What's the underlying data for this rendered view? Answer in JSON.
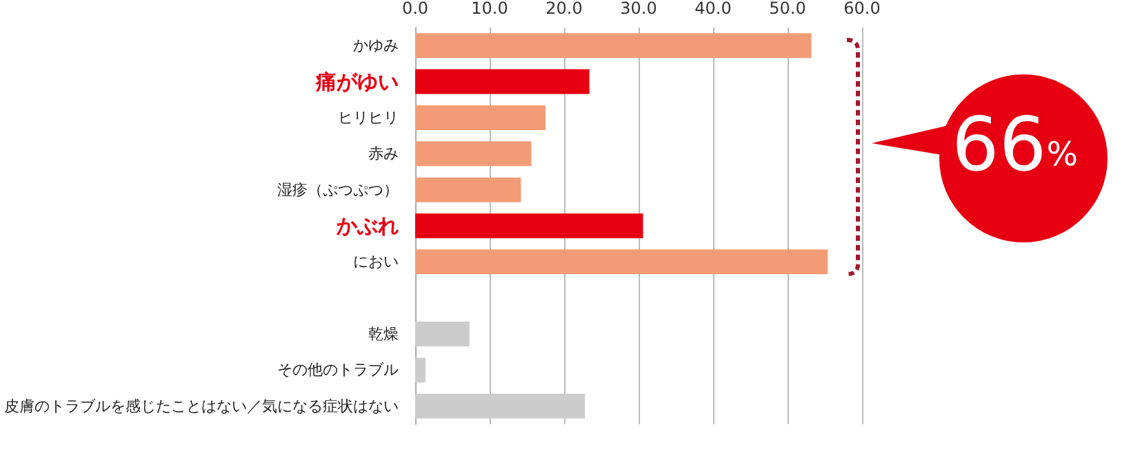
{
  "chart_data": {
    "type": "bar",
    "orientation": "horizontal",
    "categories": [
      "かゆみ",
      "痛がゆい",
      "ヒリヒリ",
      "赤み",
      "湿疹（ぷつぷつ）",
      "かぶれ",
      "におい",
      null,
      "乾燥",
      "その他のトラブル",
      "皮膚のトラブルを感じたことはない／気になる症状はない"
    ],
    "values": [
      53.2,
      23.4,
      17.5,
      15.6,
      14.2,
      30.6,
      55.4,
      null,
      7.3,
      1.4,
      22.8
    ],
    "colors": [
      "#f29c77",
      "#e60012",
      "#f29c77",
      "#f29c77",
      "#f29c77",
      "#e60012",
      "#f29c77",
      "#cccccc",
      "#cccccc",
      "#cccccc",
      "#cccccc"
    ],
    "xlim": [
      0,
      60
    ],
    "xticks": [
      {
        "value": 0,
        "label": "0.0"
      },
      {
        "value": 10,
        "label": "10.0"
      },
      {
        "value": 20,
        "label": "20.0"
      },
      {
        "value": 30,
        "label": "30.0"
      },
      {
        "value": 40,
        "label": "40.0"
      },
      {
        "value": 50,
        "label": "50.0"
      },
      {
        "value": 60,
        "label": "60.0"
      }
    ],
    "grid": "x",
    "annotations": [
      "66%"
    ]
  }
}
